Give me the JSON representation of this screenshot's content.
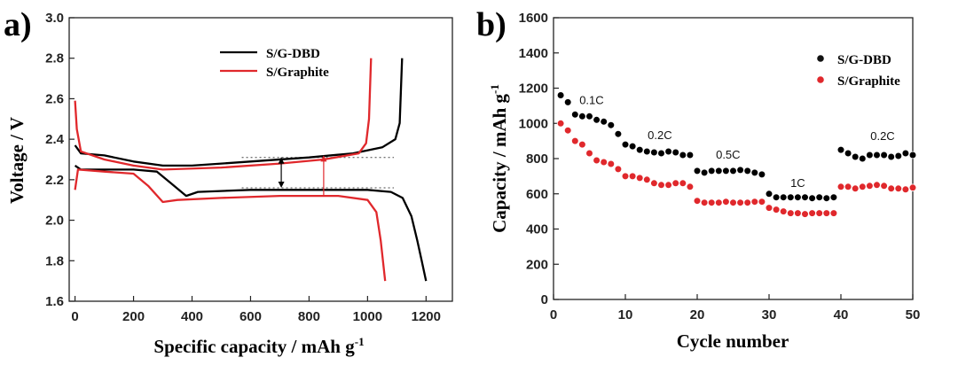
{
  "chart_data": [
    {
      "panel_label": "a)",
      "type": "line",
      "xlabel": "Specific capacity / mAh g",
      "xlabel_sup": "-1",
      "ylabel": "Voltage / V",
      "xlim": [
        -20,
        1290
      ],
      "ylim": [
        1.6,
        3.0
      ],
      "xticks": [
        0,
        200,
        400,
        600,
        800,
        1000,
        1200
      ],
      "yticks": [
        1.6,
        1.8,
        2.0,
        2.2,
        2.4,
        2.6,
        2.8,
        3.0
      ],
      "xtick_labels": [
        "0",
        "200",
        "400",
        "600",
        "800",
        "1000",
        "1200"
      ],
      "ytick_labels": [
        "1.6",
        "1.8",
        "2.0",
        "2.2",
        "2.4",
        "2.6",
        "2.8",
        "3.0"
      ],
      "legend_position": "top-right",
      "series": [
        {
          "name": "S/G-DBD",
          "color": "#000000",
          "discharge": [
            [
              0,
              2.27
            ],
            [
              20,
              2.25
            ],
            [
              100,
              2.25
            ],
            [
              200,
              2.25
            ],
            [
              280,
              2.24
            ],
            [
              330,
              2.18
            ],
            [
              380,
              2.12
            ],
            [
              420,
              2.14
            ],
            [
              600,
              2.15
            ],
            [
              800,
              2.15
            ],
            [
              1000,
              2.15
            ],
            [
              1080,
              2.14
            ],
            [
              1120,
              2.11
            ],
            [
              1150,
              2.02
            ],
            [
              1170,
              1.9
            ],
            [
              1185,
              1.8
            ],
            [
              1200,
              1.7
            ]
          ],
          "charge": [
            [
              0,
              2.37
            ],
            [
              20,
              2.33
            ],
            [
              100,
              2.32
            ],
            [
              200,
              2.29
            ],
            [
              300,
              2.27
            ],
            [
              400,
              2.27
            ],
            [
              600,
              2.29
            ],
            [
              800,
              2.31
            ],
            [
              950,
              2.33
            ],
            [
              1050,
              2.36
            ],
            [
              1095,
              2.4
            ],
            [
              1110,
              2.48
            ],
            [
              1118,
              2.8
            ]
          ]
        },
        {
          "name": "S/Graphite",
          "color": "#e0282c",
          "discharge": [
            [
              0,
              2.15
            ],
            [
              10,
              2.25
            ],
            [
              100,
              2.24
            ],
            [
              200,
              2.23
            ],
            [
              250,
              2.17
            ],
            [
              300,
              2.09
            ],
            [
              350,
              2.1
            ],
            [
              500,
              2.11
            ],
            [
              700,
              2.12
            ],
            [
              900,
              2.12
            ],
            [
              1000,
              2.1
            ],
            [
              1030,
              2.04
            ],
            [
              1045,
              1.9
            ],
            [
              1060,
              1.7
            ]
          ],
          "charge": [
            [
              0,
              2.59
            ],
            [
              6,
              2.45
            ],
            [
              20,
              2.34
            ],
            [
              100,
              2.3
            ],
            [
              200,
              2.27
            ],
            [
              300,
              2.25
            ],
            [
              500,
              2.26
            ],
            [
              700,
              2.28
            ],
            [
              850,
              2.3
            ],
            [
              970,
              2.33
            ],
            [
              995,
              2.38
            ],
            [
              1005,
              2.5
            ],
            [
              1012,
              2.8
            ]
          ]
        }
      ],
      "reference_lines": [
        {
          "y": 2.31,
          "from": 570,
          "to": 1090,
          "style": "dotted"
        },
        {
          "y": 2.16,
          "from": 570,
          "to": 1090,
          "style": "dotted"
        }
      ],
      "polarization_arrows": [
        {
          "color": "#000000",
          "x": 705,
          "y_from": 2.31,
          "y_to": 2.16
        },
        {
          "color": "#e0282c",
          "x": 850,
          "y_from": 2.12,
          "y_to": 2.32
        }
      ]
    },
    {
      "panel_label": "b)",
      "type": "scatter",
      "xlabel": "Cycle number",
      "ylabel": "Capacity / mAh g",
      "ylabel_sup": "-1",
      "xlim": [
        0,
        50
      ],
      "ylim": [
        0,
        1600
      ],
      "xticks": [
        0,
        10,
        20,
        30,
        40,
        50
      ],
      "yticks": [
        0,
        200,
        400,
        600,
        800,
        1000,
        1200,
        1400,
        1600
      ],
      "xtick_labels": [
        "0",
        "10",
        "20",
        "30",
        "40",
        "50"
      ],
      "ytick_labels": [
        "0",
        "200",
        "400",
        "600",
        "800",
        "1000",
        "1200",
        "1400",
        "1600"
      ],
      "legend_position": "top-right",
      "rate_labels": [
        {
          "text": "0.1C",
          "x": 5.3,
          "y": 1110
        },
        {
          "text": "0.2C",
          "x": 14.8,
          "y": 910
        },
        {
          "text": "0.5C",
          "x": 24.3,
          "y": 800
        },
        {
          "text": "1C",
          "x": 34,
          "y": 640
        },
        {
          "text": "0.2C",
          "x": 45.8,
          "y": 905
        }
      ],
      "x": [
        1,
        2,
        3,
        4,
        5,
        6,
        7,
        8,
        9,
        10,
        11,
        12,
        13,
        14,
        15,
        16,
        17,
        18,
        19,
        20,
        21,
        22,
        23,
        24,
        25,
        26,
        27,
        28,
        29,
        30,
        31,
        32,
        33,
        34,
        35,
        36,
        37,
        38,
        39,
        40,
        41,
        42,
        43,
        44,
        45,
        46,
        47,
        48,
        49,
        50
      ],
      "series": [
        {
          "name": "S/G-DBD",
          "color": "#000000",
          "values": [
            1160,
            1120,
            1050,
            1040,
            1040,
            1020,
            1010,
            990,
            940,
            880,
            870,
            850,
            840,
            835,
            830,
            840,
            835,
            820,
            820,
            730,
            720,
            730,
            730,
            730,
            730,
            735,
            730,
            720,
            710,
            600,
            580,
            580,
            580,
            580,
            580,
            575,
            580,
            575,
            580,
            850,
            830,
            810,
            800,
            820,
            820,
            820,
            810,
            815,
            830,
            820
          ]
        },
        {
          "name": "S/Graphite",
          "color": "#e0282c",
          "values": [
            1000,
            960,
            900,
            880,
            830,
            790,
            780,
            770,
            740,
            700,
            700,
            690,
            680,
            660,
            650,
            650,
            660,
            660,
            640,
            560,
            550,
            550,
            550,
            555,
            550,
            550,
            550,
            555,
            555,
            520,
            510,
            500,
            490,
            490,
            485,
            490,
            490,
            490,
            490,
            640,
            640,
            630,
            640,
            645,
            650,
            645,
            630,
            630,
            625,
            635
          ]
        }
      ]
    }
  ]
}
